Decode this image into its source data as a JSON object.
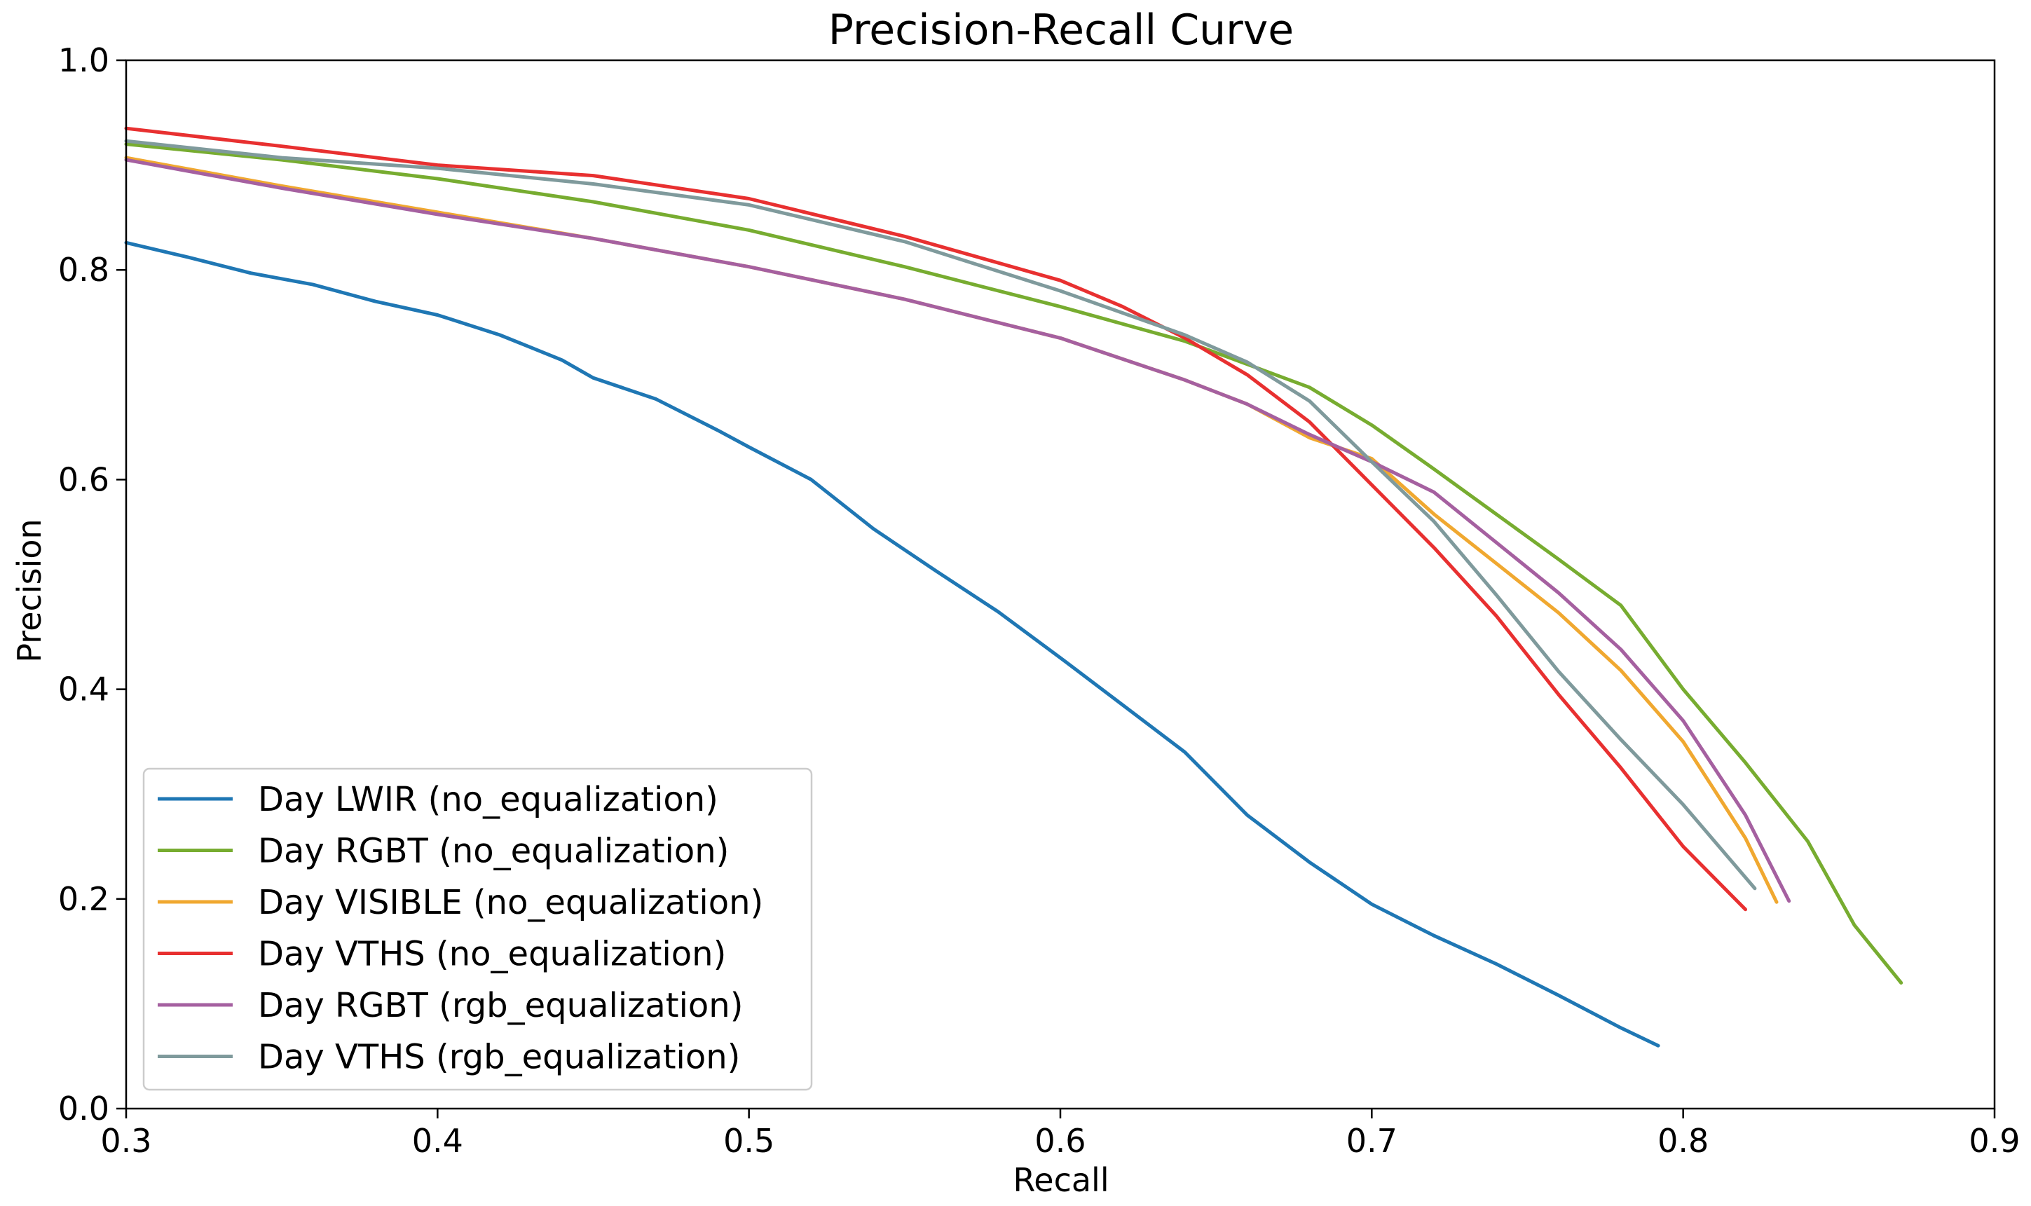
{
  "chart_data": {
    "type": "line",
    "title": "Precision-Recall Curve",
    "xlabel": "Recall",
    "ylabel": "Precision",
    "xlim": [
      0.3,
      0.9
    ],
    "ylim": [
      0.0,
      1.0
    ],
    "xticks": [
      "0.3",
      "0.4",
      "0.5",
      "0.6",
      "0.7",
      "0.8",
      "0.9"
    ],
    "yticks": [
      "0.0",
      "0.2",
      "0.4",
      "0.6",
      "0.8",
      "1.0"
    ],
    "grid": false,
    "legend_position": "lower-left",
    "series": [
      {
        "name": "Day LWIR (no_equalization)",
        "color": "#1f77b4",
        "points": [
          [
            0.3,
            0.826
          ],
          [
            0.32,
            0.812
          ],
          [
            0.34,
            0.797
          ],
          [
            0.36,
            0.786
          ],
          [
            0.38,
            0.77
          ],
          [
            0.4,
            0.757
          ],
          [
            0.42,
            0.738
          ],
          [
            0.44,
            0.714
          ],
          [
            0.45,
            0.697
          ],
          [
            0.47,
            0.677
          ],
          [
            0.49,
            0.647
          ],
          [
            0.5,
            0.631
          ],
          [
            0.52,
            0.6
          ],
          [
            0.54,
            0.553
          ],
          [
            0.56,
            0.513
          ],
          [
            0.58,
            0.474
          ],
          [
            0.6,
            0.43
          ],
          [
            0.62,
            0.385
          ],
          [
            0.64,
            0.34
          ],
          [
            0.66,
            0.28
          ],
          [
            0.68,
            0.235
          ],
          [
            0.7,
            0.195
          ],
          [
            0.72,
            0.165
          ],
          [
            0.74,
            0.138
          ],
          [
            0.76,
            0.108
          ],
          [
            0.78,
            0.077
          ],
          [
            0.792,
            0.06
          ]
        ]
      },
      {
        "name": "Day RGBT (no_equalization)",
        "color": "#77ac30",
        "points": [
          [
            0.3,
            0.92
          ],
          [
            0.35,
            0.905
          ],
          [
            0.4,
            0.887
          ],
          [
            0.45,
            0.865
          ],
          [
            0.5,
            0.838
          ],
          [
            0.55,
            0.803
          ],
          [
            0.6,
            0.765
          ],
          [
            0.64,
            0.732
          ],
          [
            0.66,
            0.71
          ],
          [
            0.68,
            0.688
          ],
          [
            0.7,
            0.652
          ],
          [
            0.72,
            0.61
          ],
          [
            0.74,
            0.567
          ],
          [
            0.76,
            0.524
          ],
          [
            0.78,
            0.48
          ],
          [
            0.8,
            0.4
          ],
          [
            0.82,
            0.33
          ],
          [
            0.84,
            0.255
          ],
          [
            0.855,
            0.175
          ],
          [
            0.87,
            0.12
          ]
        ]
      },
      {
        "name": "Day VISIBLE (no_equalization)",
        "color": "#f0a830",
        "points": [
          [
            0.3,
            0.907
          ],
          [
            0.35,
            0.88
          ],
          [
            0.4,
            0.855
          ],
          [
            0.45,
            0.83
          ],
          [
            0.5,
            0.803
          ],
          [
            0.55,
            0.772
          ],
          [
            0.6,
            0.735
          ],
          [
            0.64,
            0.695
          ],
          [
            0.66,
            0.672
          ],
          [
            0.68,
            0.64
          ],
          [
            0.7,
            0.62
          ],
          [
            0.72,
            0.567
          ],
          [
            0.74,
            0.52
          ],
          [
            0.76,
            0.473
          ],
          [
            0.78,
            0.418
          ],
          [
            0.8,
            0.35
          ],
          [
            0.82,
            0.258
          ],
          [
            0.83,
            0.197
          ]
        ]
      },
      {
        "name": "Day VTHS (no_equalization)",
        "color": "#e83030",
        "points": [
          [
            0.3,
            0.935
          ],
          [
            0.35,
            0.918
          ],
          [
            0.4,
            0.9
          ],
          [
            0.45,
            0.89
          ],
          [
            0.5,
            0.868
          ],
          [
            0.55,
            0.832
          ],
          [
            0.6,
            0.79
          ],
          [
            0.62,
            0.765
          ],
          [
            0.64,
            0.735
          ],
          [
            0.66,
            0.7
          ],
          [
            0.68,
            0.655
          ],
          [
            0.7,
            0.595
          ],
          [
            0.72,
            0.535
          ],
          [
            0.74,
            0.47
          ],
          [
            0.76,
            0.395
          ],
          [
            0.78,
            0.325
          ],
          [
            0.8,
            0.25
          ],
          [
            0.82,
            0.19
          ]
        ]
      },
      {
        "name": "Day RGBT (rgb_equalization)",
        "color": "#a560a0",
        "points": [
          [
            0.3,
            0.905
          ],
          [
            0.35,
            0.878
          ],
          [
            0.4,
            0.853
          ],
          [
            0.45,
            0.83
          ],
          [
            0.5,
            0.803
          ],
          [
            0.55,
            0.772
          ],
          [
            0.6,
            0.735
          ],
          [
            0.64,
            0.695
          ],
          [
            0.66,
            0.672
          ],
          [
            0.68,
            0.643
          ],
          [
            0.7,
            0.617
          ],
          [
            0.72,
            0.588
          ],
          [
            0.74,
            0.54
          ],
          [
            0.76,
            0.492
          ],
          [
            0.78,
            0.438
          ],
          [
            0.8,
            0.37
          ],
          [
            0.82,
            0.28
          ],
          [
            0.834,
            0.198
          ]
        ]
      },
      {
        "name": "Day VTHS (rgb_equalization)",
        "color": "#7f9a9c",
        "points": [
          [
            0.3,
            0.923
          ],
          [
            0.35,
            0.907
          ],
          [
            0.4,
            0.897
          ],
          [
            0.45,
            0.882
          ],
          [
            0.5,
            0.862
          ],
          [
            0.55,
            0.827
          ],
          [
            0.6,
            0.78
          ],
          [
            0.64,
            0.738
          ],
          [
            0.66,
            0.712
          ],
          [
            0.68,
            0.675
          ],
          [
            0.7,
            0.617
          ],
          [
            0.72,
            0.56
          ],
          [
            0.74,
            0.49
          ],
          [
            0.76,
            0.417
          ],
          [
            0.78,
            0.352
          ],
          [
            0.8,
            0.29
          ],
          [
            0.823,
            0.21
          ]
        ]
      }
    ]
  }
}
